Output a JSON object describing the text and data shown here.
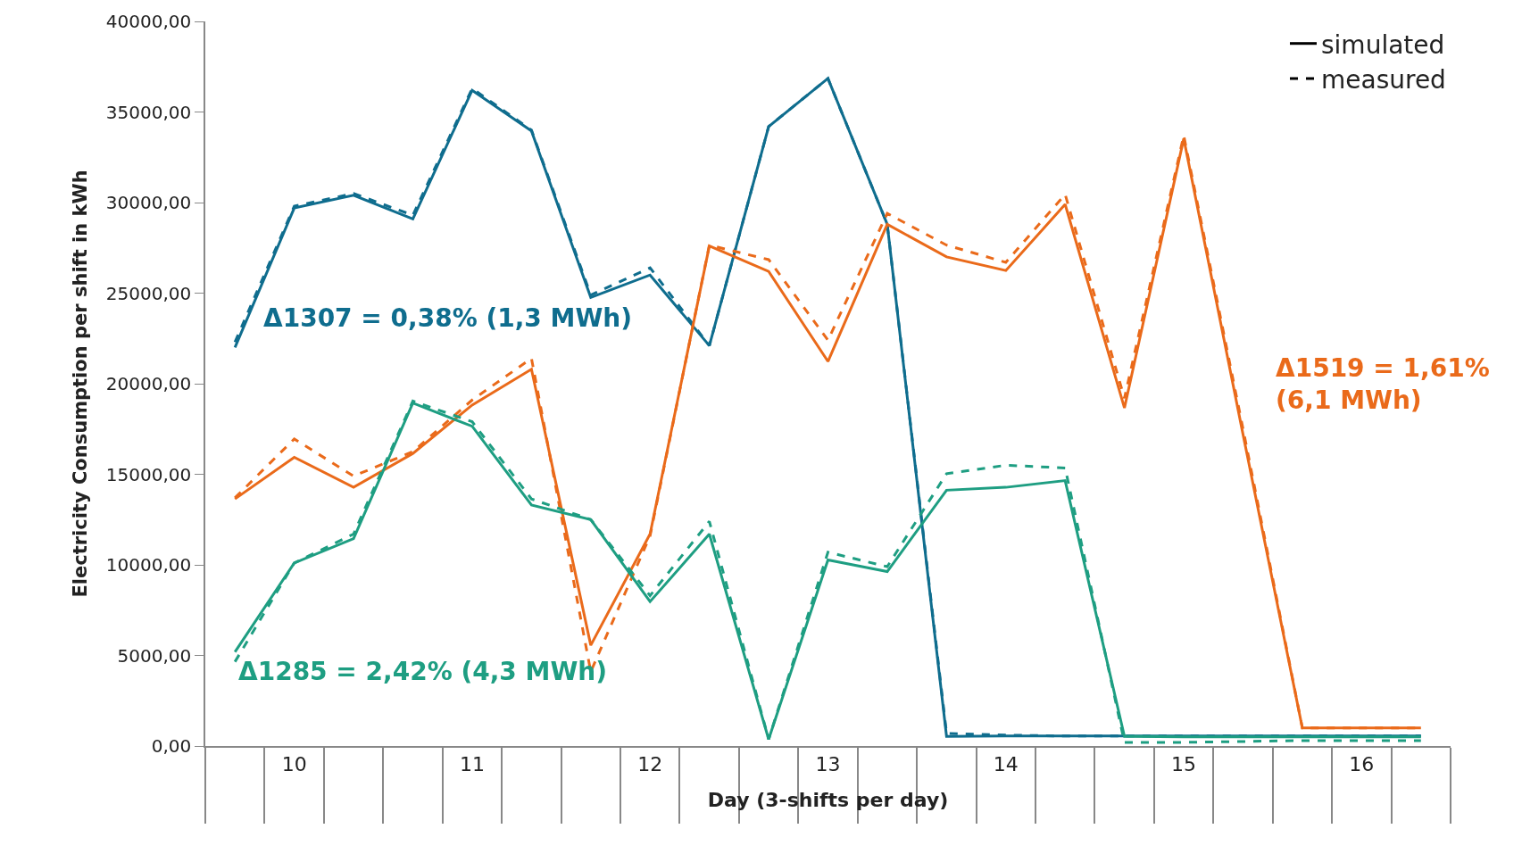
{
  "chart_data": {
    "type": "line",
    "xlabel": "Day (3-shifts per day)",
    "ylabel": "Electricity Consumption per shift in kWh",
    "categories": [
      null,
      "10",
      null,
      null,
      "11",
      null,
      null,
      "12",
      null,
      null,
      "13",
      null,
      null,
      "14",
      null,
      null,
      "15",
      null,
      null,
      "16",
      null
    ],
    "ylim": [
      0,
      40000
    ],
    "yticks": [
      {
        "value": 0,
        "label": "0,00"
      },
      {
        "value": 5000,
        "label": "5000,00"
      },
      {
        "value": 10000,
        "label": "10000,00"
      },
      {
        "value": 15000,
        "label": "15000,00"
      },
      {
        "value": 20000,
        "label": "20000,00"
      },
      {
        "value": 25000,
        "label": "25000,00"
      },
      {
        "value": 30000,
        "label": "30000,00"
      },
      {
        "value": 35000,
        "label": "35000,00"
      },
      {
        "value": 40000,
        "label": "40000,00"
      }
    ],
    "legend": "top right",
    "marker": "none",
    "series": [
      {
        "color": "#0f6d8e",
        "line_style": "solid",
        "values": [
          22000,
          29700,
          30400,
          29100,
          36200,
          33950,
          24760,
          26000,
          22100,
          34200,
          36850,
          28800,
          530,
          550,
          550,
          550,
          550,
          550,
          550,
          550,
          550
        ]
      },
      {
        "color": "#0f6d8e",
        "line_style": "dashed",
        "values": [
          22300,
          29800,
          30500,
          29300,
          36300,
          34000,
          24900,
          26400,
          22100,
          34200,
          36850,
          28800,
          700,
          600,
          550,
          550,
          550,
          550,
          550,
          550,
          550
        ]
      },
      {
        "color": "#ea6a1a",
        "line_style": "solid",
        "values": [
          13640,
          15940,
          14280,
          16150,
          18820,
          20800,
          5560,
          11700,
          27600,
          26200,
          21230,
          28800,
          27000,
          26250,
          29900,
          18660,
          33530,
          17200,
          1000,
          1000,
          1000
        ]
      },
      {
        "color": "#ea6a1a",
        "line_style": "dashed",
        "values": [
          13700,
          16950,
          14900,
          16250,
          19100,
          21400,
          4100,
          11600,
          27650,
          26850,
          22400,
          29400,
          27650,
          26700,
          30450,
          19200,
          33700,
          17500,
          1000,
          1000,
          1000
        ]
      },
      {
        "color": "#1e9e82",
        "line_style": "solid",
        "values": [
          5190,
          10100,
          11450,
          18930,
          17650,
          13300,
          12500,
          7970,
          11700,
          370,
          10270,
          9630,
          14120,
          14280,
          14650,
          530,
          500,
          500,
          500,
          500,
          500
        ]
      },
      {
        "color": "#1e9e82",
        "line_style": "dashed",
        "values": [
          4650,
          10100,
          11700,
          19040,
          17900,
          13640,
          12500,
          8300,
          12400,
          370,
          10700,
          9900,
          15030,
          15500,
          15350,
          200,
          200,
          250,
          300,
          300,
          300
        ]
      },
      {
        "name": "simulated",
        "color": "#000000",
        "line_style": "solid",
        "values": [
          null,
          null,
          null,
          null,
          null,
          null,
          null,
          null,
          null,
          null,
          null,
          null,
          null,
          null,
          null,
          null,
          null,
          null,
          null,
          null,
          null
        ]
      },
      {
        "name": "measured",
        "color": "#000000",
        "line_style": "dashed",
        "values": [
          null,
          null,
          null,
          null,
          null,
          null,
          null,
          null,
          null,
          null,
          null,
          null,
          null,
          null,
          null,
          null,
          null,
          null,
          null,
          null,
          null
        ]
      }
    ],
    "annotations": [
      "Δ1307 = 0,38% (1,3 MWh)",
      "Δ1519 = 1,61%\n(6,1 MWh)",
      "Δ1285 = 2,42% (4,3 MWh)"
    ]
  }
}
